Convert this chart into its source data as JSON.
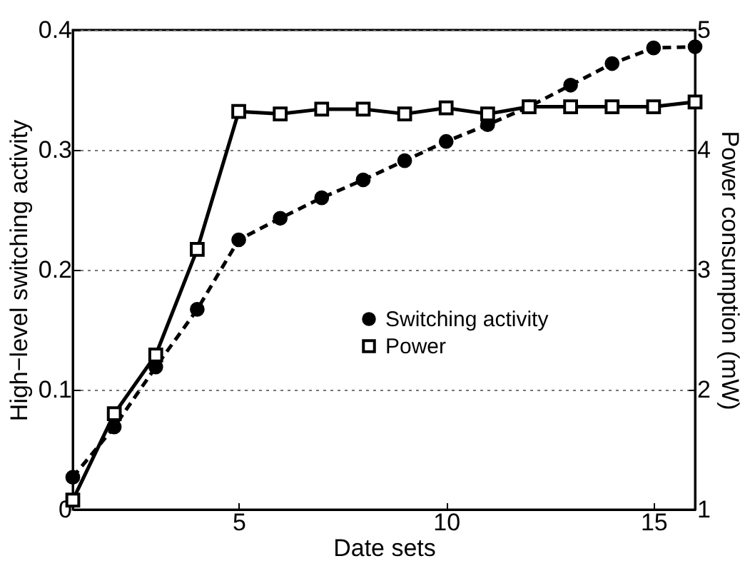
{
  "chart_data": {
    "type": "line",
    "xlabel": "Date sets",
    "ylabel": "High−level switching activity",
    "y2label": "Power consumption (mW)",
    "x": [
      1,
      2,
      3,
      4,
      5,
      6,
      7,
      8,
      9,
      10,
      11,
      12,
      13,
      14,
      15,
      16
    ],
    "series": [
      {
        "name": "Switching activity",
        "color": "#000000",
        "marker": "circle",
        "line_style": "dashed",
        "values": [
          0.027,
          0.069,
          0.119,
          0.167,
          0.225,
          0.243,
          0.26,
          0.275,
          0.291,
          0.307,
          0.321,
          0.336,
          0.354,
          0.372,
          0.385,
          0.386
        ]
      },
      {
        "name": "Power",
        "color": "#000000",
        "marker": "square",
        "line_style": "solid",
        "axis": "y2",
        "values": [
          1.08,
          1.8,
          2.29,
          3.17,
          4.32,
          4.3,
          4.34,
          4.34,
          4.3,
          4.35,
          4.3,
          4.36,
          4.36,
          4.36,
          4.36,
          4.4
        ]
      }
    ],
    "xlim": [
      1,
      16
    ],
    "xticks": [
      5,
      10,
      15
    ],
    "ylim": [
      0,
      0.4
    ],
    "yticks": [
      0,
      0.1,
      0.2,
      0.3,
      0.4
    ],
    "y2lim": [
      1,
      5
    ],
    "y2ticks": [
      1,
      2,
      3,
      4,
      5
    ],
    "grid": "y",
    "legend": "right"
  }
}
